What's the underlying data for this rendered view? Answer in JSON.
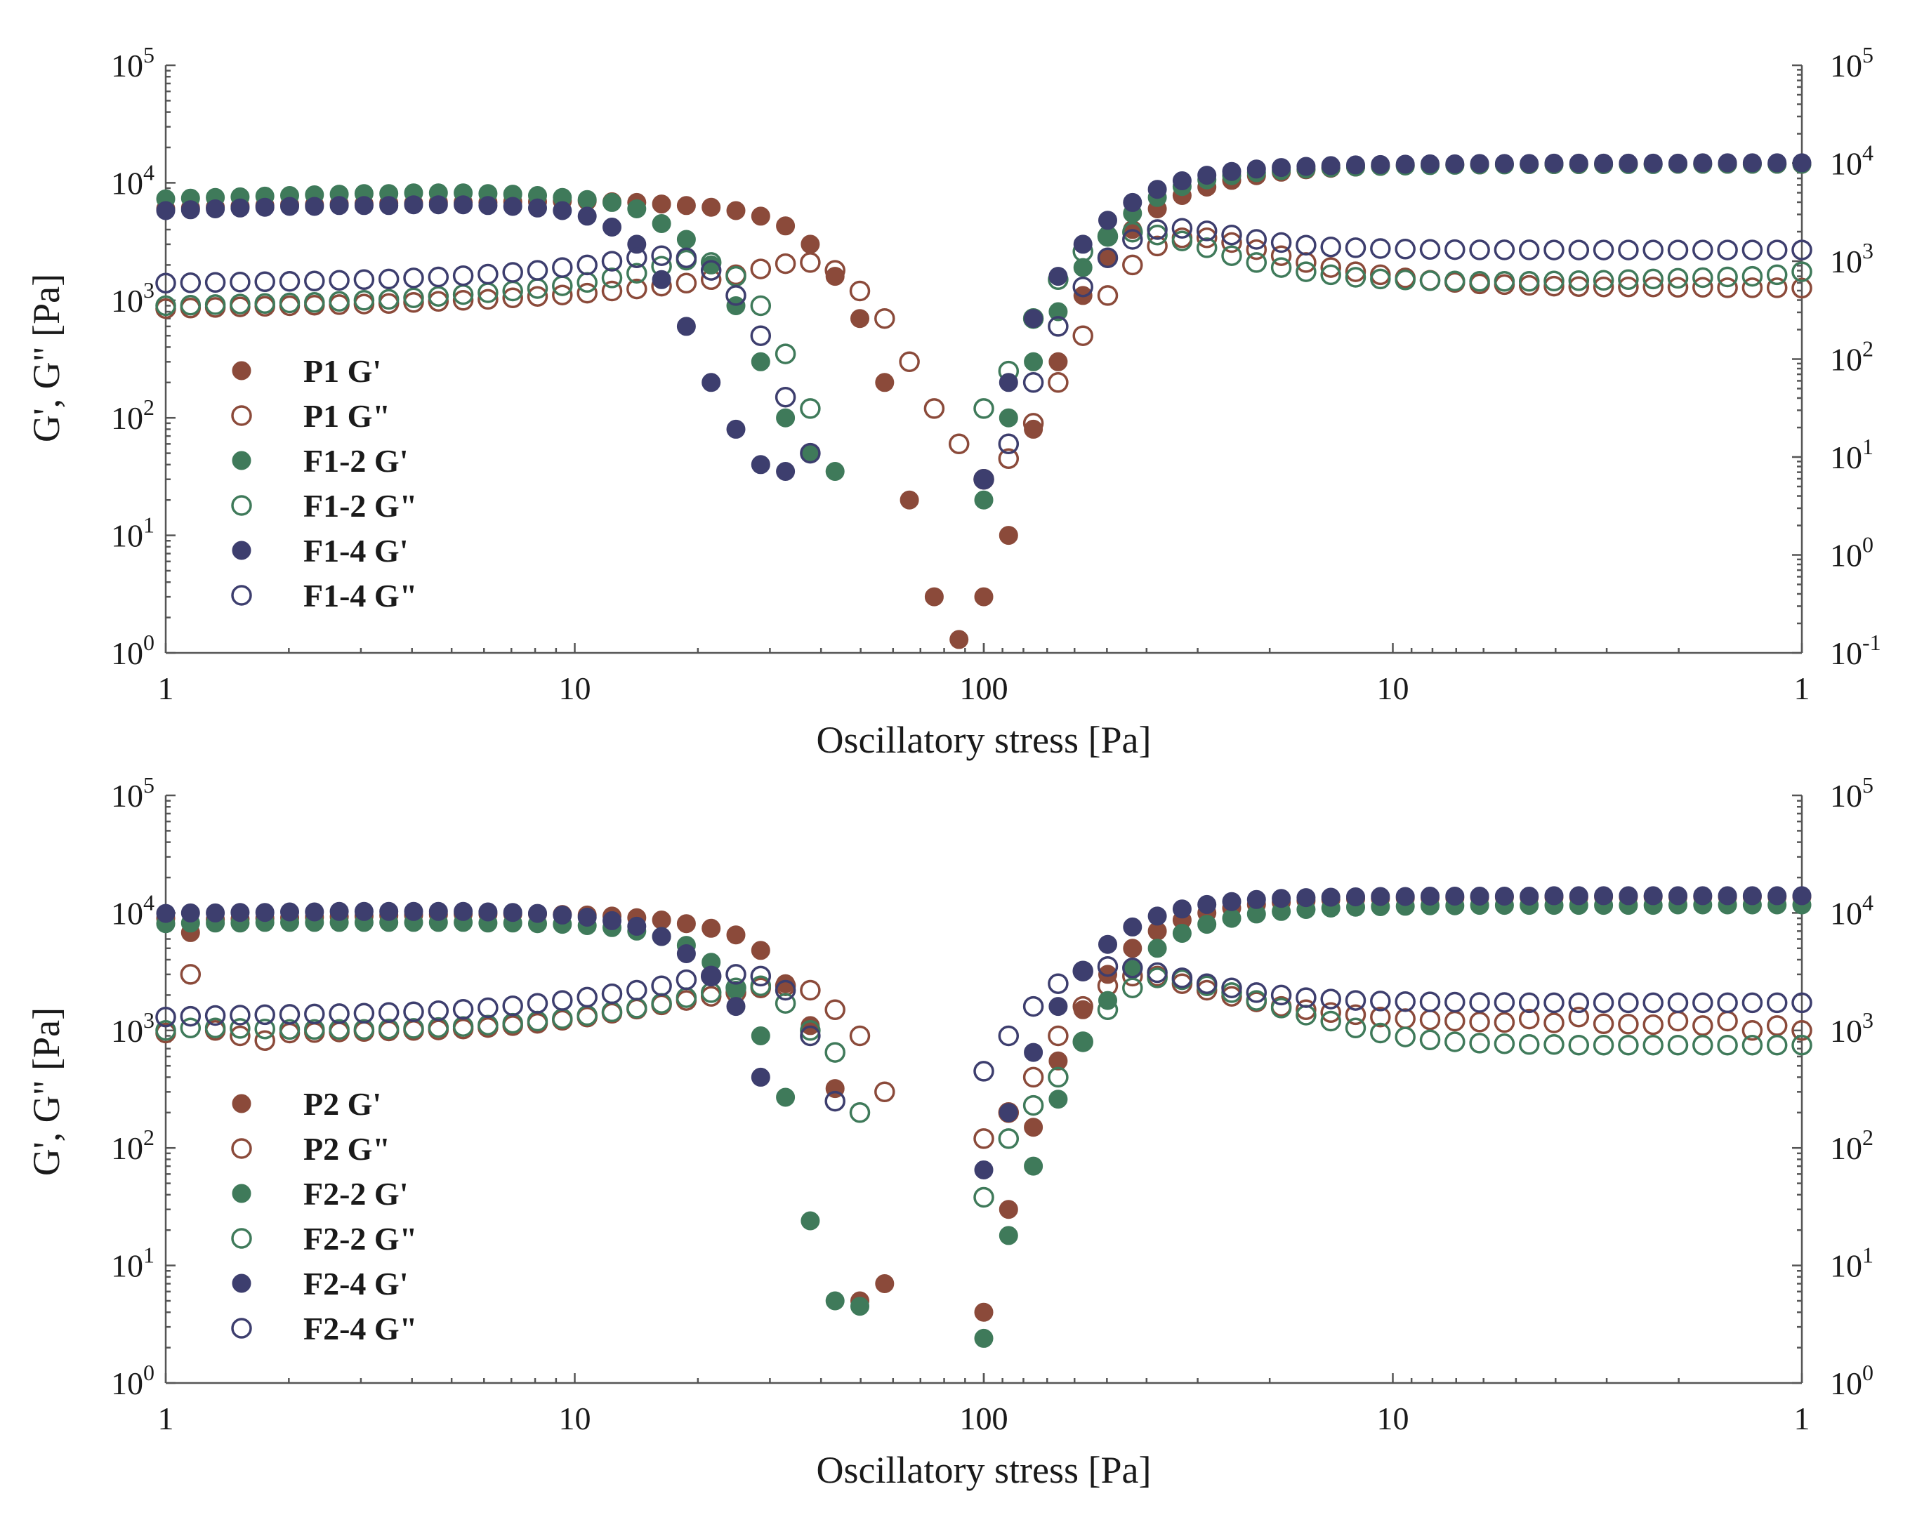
{
  "chart_data": [
    {
      "type": "scatter",
      "panel": "top",
      "xlabel": "Oscillatory stress [Pa]",
      "ylabel": "G', G\" [Pa]",
      "x_axis": "log, ascending 1 to 100 then descending 100 to 1 (up/down stress sweep)",
      "x_tick_labels": [
        "1",
        "10",
        "100",
        "100",
        "10",
        "1"
      ],
      "left_y": {
        "scale": "log",
        "range": [
          1,
          100000
        ],
        "tick_labels": [
          {
            "base": "10",
            "exp": "0"
          },
          {
            "base": "10",
            "exp": "1"
          },
          {
            "base": "10",
            "exp": "2"
          },
          {
            "base": "10",
            "exp": "3"
          },
          {
            "base": "10",
            "exp": "4"
          },
          {
            "base": "10",
            "exp": "5"
          }
        ]
      },
      "right_y": {
        "scale": "log",
        "range": [
          0.1,
          100000
        ],
        "tick_labels": [
          {
            "base": "10",
            "exp": "-1"
          },
          {
            "base": "10",
            "exp": "0"
          },
          {
            "base": "10",
            "exp": "1"
          },
          {
            "base": "10",
            "exp": "2"
          },
          {
            "base": "10",
            "exp": "3"
          },
          {
            "base": "10",
            "exp": "4"
          },
          {
            "base": "10",
            "exp": "5"
          }
        ]
      },
      "legend_position": "lower-left",
      "series": [
        {
          "name": "P1 G'",
          "color": "#8b4a3a",
          "filled": true,
          "up": [
            6000,
            6100,
            6200,
            6300,
            6400,
            6500,
            6500,
            6600,
            6600,
            6700,
            6700,
            6800,
            6800,
            6800,
            6900,
            6900,
            7000,
            7000,
            6900,
            6800,
            6600,
            6400,
            6200,
            5800,
            5200,
            4300,
            3000,
            1600,
            700,
            200,
            20,
            3,
            1.3
          ],
          "down": [
            3,
            10,
            80,
            300,
            1100,
            2300,
            4000,
            6000,
            7800,
            9200,
            10500,
            11500,
            12300,
            12900,
            13300,
            13600,
            13800,
            14000,
            14100,
            14200,
            14200,
            14300,
            14300,
            14300,
            14300,
            14300,
            14400,
            14400,
            14400,
            14400,
            14400,
            14400,
            14400,
            14400
          ]
        },
        {
          "name": "P1 G\"",
          "color": "#8b4a3a",
          "filled": false,
          "up": [
            850,
            860,
            870,
            880,
            890,
            900,
            910,
            920,
            930,
            940,
            960,
            980,
            1000,
            1020,
            1050,
            1080,
            1110,
            1150,
            1200,
            1250,
            1320,
            1400,
            1500,
            1650,
            1850,
            2050,
            2100,
            1800,
            1200,
            700,
            300,
            120,
            60
          ],
          "down": [
            30,
            45,
            90,
            200,
            500,
            1100,
            2000,
            2900,
            3400,
            3400,
            3100,
            2700,
            2400,
            2100,
            1900,
            1750,
            1650,
            1550,
            1480,
            1420,
            1380,
            1360,
            1340,
            1320,
            1310,
            1300,
            1300,
            1300,
            1290,
            1290,
            1280,
            1280,
            1280,
            1270
          ]
        },
        {
          "name": "F1-2 G'",
          "color": "#3f7a5a",
          "filled": true,
          "up": [
            7300,
            7400,
            7500,
            7600,
            7700,
            7800,
            7900,
            8000,
            8100,
            8100,
            8200,
            8200,
            8200,
            8100,
            8000,
            7800,
            7500,
            7200,
            6800,
            6000,
            4500,
            3300,
            2000,
            900,
            300,
            100,
            50,
            35
          ],
          "down": [
            20,
            100,
            300,
            800,
            1900,
            3600,
            5500,
            7500,
            9300,
            10600,
            11500,
            12200,
            12700,
            13100,
            13400,
            13600,
            13800,
            13900,
            14000,
            14100,
            14200,
            14200,
            14300,
            14300,
            14300,
            14300,
            14300,
            14300,
            14400,
            14400,
            14400,
            14400,
            14400,
            14400
          ]
        },
        {
          "name": "F1-2 G\"",
          "color": "#3f7a5a",
          "filled": false,
          "up": [
            900,
            910,
            920,
            930,
            940,
            950,
            960,
            980,
            1000,
            1020,
            1050,
            1080,
            1120,
            1160,
            1200,
            1260,
            1330,
            1420,
            1550,
            1700,
            1950,
            2200,
            2100,
            1600,
            900,
            350,
            120
          ],
          "down": [
            120,
            250,
            700,
            1500,
            2600,
            3500,
            3800,
            3600,
            3200,
            2800,
            2400,
            2100,
            1900,
            1750,
            1650,
            1570,
            1520,
            1490,
            1470,
            1460,
            1450,
            1450,
            1450,
            1460,
            1470,
            1480,
            1500,
            1520,
            1540,
            1560,
            1580,
            1600,
            1650,
            1750
          ]
        },
        {
          "name": "F1-4 G'",
          "color": "#3d3e6e",
          "filled": true,
          "up": [
            5800,
            5900,
            6000,
            6100,
            6200,
            6300,
            6300,
            6400,
            6400,
            6400,
            6500,
            6500,
            6500,
            6400,
            6300,
            6100,
            5800,
            5200,
            4200,
            3000,
            1500,
            600,
            200,
            80,
            40,
            35
          ],
          "down": [
            30,
            200,
            700,
            1600,
            3000,
            4800,
            6800,
            8800,
            10400,
            11600,
            12500,
            13100,
            13500,
            13800,
            14000,
            14200,
            14300,
            14400,
            14500,
            14500,
            14600,
            14600,
            14600,
            14700,
            14700,
            14700,
            14700,
            14700,
            14700,
            14800,
            14800,
            14800,
            14800,
            14800
          ]
        },
        {
          "name": "F1-4 G\"",
          "color": "#3d3e6e",
          "filled": false,
          "up": [
            1400,
            1410,
            1420,
            1430,
            1440,
            1450,
            1460,
            1480,
            1500,
            1520,
            1550,
            1580,
            1620,
            1670,
            1730,
            1800,
            1900,
            2000,
            2150,
            2300,
            2400,
            2300,
            1800,
            1100,
            500,
            150,
            50
          ],
          "down": [
            30,
            60,
            200,
            600,
            1300,
            2300,
            3300,
            4000,
            4100,
            3900,
            3600,
            3300,
            3100,
            2950,
            2850,
            2800,
            2760,
            2730,
            2710,
            2700,
            2690,
            2690,
            2690,
            2680,
            2680,
            2680,
            2680,
            2680,
            2680,
            2680,
            2680,
            2680,
            2680,
            2680
          ]
        }
      ]
    },
    {
      "type": "scatter",
      "panel": "bottom",
      "xlabel": "Oscillatory stress [Pa]",
      "ylabel": "G', G\" [Pa]",
      "x_axis": "log, ascending 1 to 100 then descending 100 to 1 (up/down stress sweep)",
      "x_tick_labels": [
        "1",
        "10",
        "100",
        "100",
        "10",
        "1"
      ],
      "left_y": {
        "scale": "log",
        "range": [
          1,
          100000
        ],
        "tick_labels": [
          {
            "base": "10",
            "exp": "0"
          },
          {
            "base": "10",
            "exp": "1"
          },
          {
            "base": "10",
            "exp": "2"
          },
          {
            "base": "10",
            "exp": "3"
          },
          {
            "base": "10",
            "exp": "4"
          },
          {
            "base": "10",
            "exp": "5"
          }
        ]
      },
      "right_y": {
        "scale": "log",
        "range": [
          1,
          100000
        ],
        "tick_labels": [
          {
            "base": "10",
            "exp": "0"
          },
          {
            "base": "10",
            "exp": "1"
          },
          {
            "base": "10",
            "exp": "2"
          },
          {
            "base": "10",
            "exp": "3"
          },
          {
            "base": "10",
            "exp": "4"
          },
          {
            "base": "10",
            "exp": "5"
          }
        ]
      },
      "legend_position": "lower-left",
      "series": [
        {
          "name": "P2 G'",
          "color": "#8b4a3a",
          "filled": true,
          "up": [
            9000,
            6800,
            8800,
            8900,
            9000,
            9100,
            9200,
            9300,
            9400,
            9500,
            9600,
            9700,
            9800,
            9800,
            9800,
            9800,
            9700,
            9600,
            9400,
            9100,
            8700,
            8100,
            7400,
            6500,
            4800,
            2500,
            1100,
            320,
            5,
            7
          ],
          "down": [
            4,
            30,
            150,
            550,
            1500,
            3000,
            5000,
            7000,
            8700,
            10000,
            11000,
            11800,
            12300,
            12700,
            13000,
            13200,
            13300,
            13400,
            13500,
            13500,
            13600,
            13600,
            13600,
            13600,
            13600,
            13700,
            13700,
            13700,
            13700,
            13700,
            13700,
            13700,
            13700,
            13700
          ]
        },
        {
          "name": "P2 G\"",
          "color": "#8b4a3a",
          "filled": false,
          "up": [
            950,
            3000,
            1000,
            900,
            820,
            950,
            960,
            970,
            980,
            990,
            1000,
            1010,
            1030,
            1060,
            1100,
            1150,
            1220,
            1300,
            1400,
            1520,
            1650,
            1800,
            1950,
            2100,
            2300,
            2400,
            2200,
            1500,
            900,
            300
          ],
          "down": [
            120,
            200,
            400,
            900,
            1600,
            2400,
            2900,
            2900,
            2500,
            2200,
            1950,
            1750,
            1600,
            1500,
            1420,
            1360,
            1300,
            1260,
            1230,
            1200,
            1180,
            1170,
            1250,
            1160,
            1300,
            1140,
            1130,
            1120,
            1200,
            1100,
            1200,
            1000,
            1100,
            1000
          ]
        },
        {
          "name": "F2-2 G'",
          "color": "#3f7a5a",
          "filled": true,
          "up": [
            8100,
            8200,
            8200,
            8200,
            8300,
            8300,
            8300,
            8300,
            8300,
            8300,
            8300,
            8300,
            8300,
            8200,
            8200,
            8100,
            8000,
            7800,
            7500,
            7000,
            6300,
            5300,
            3800,
            2200,
            900,
            270,
            24,
            5,
            4.5
          ],
          "down": [
            2.4,
            18,
            70,
            260,
            800,
            1800,
            3300,
            5000,
            6700,
            8000,
            9000,
            9800,
            10300,
            10700,
            11000,
            11200,
            11300,
            11400,
            11500,
            11500,
            11600,
            11600,
            11600,
            11600,
            11600,
            11600,
            11600,
            11600,
            11700,
            11700,
            11700,
            11700,
            11700,
            11700
          ]
        },
        {
          "name": "F2-2 G\"",
          "color": "#3f7a5a",
          "filled": false,
          "up": [
            1000,
            1050,
            1050,
            1040,
            1030,
            1020,
            1020,
            1020,
            1020,
            1030,
            1040,
            1060,
            1080,
            1110,
            1150,
            1200,
            1260,
            1340,
            1440,
            1550,
            1700,
            1900,
            2100,
            2300,
            2400,
            1700,
            1000,
            650,
            200
          ],
          "down": [
            38,
            120,
            230,
            400,
            800,
            1500,
            2300,
            2800,
            2700,
            2400,
            2100,
            1800,
            1550,
            1350,
            1200,
            1050,
            950,
            880,
            830,
            800,
            780,
            770,
            760,
            760,
            750,
            750,
            750,
            750,
            750,
            750,
            750,
            750,
            750,
            750
          ]
        },
        {
          "name": "F2-4 G'",
          "color": "#3d3e6e",
          "filled": true,
          "up": [
            9900,
            10000,
            10000,
            10100,
            10100,
            10200,
            10200,
            10300,
            10300,
            10300,
            10300,
            10300,
            10300,
            10200,
            10100,
            9900,
            9600,
            9200,
            8600,
            7700,
            6300,
            4500,
            2900,
            1600,
            400
          ],
          "down": [
            65,
            200,
            650,
            1600,
            3200,
            5400,
            7600,
            9400,
            10800,
            11800,
            12500,
            13000,
            13300,
            13500,
            13600,
            13700,
            13800,
            13800,
            13900,
            13900,
            13900,
            13900,
            13900,
            14000,
            14000,
            14000,
            14000,
            14000,
            14000,
            14000,
            14000,
            14000,
            14000,
            14000
          ]
        },
        {
          "name": "F2-4 G\"",
          "color": "#3d3e6e",
          "filled": false,
          "up": [
            1300,
            1320,
            1340,
            1350,
            1360,
            1370,
            1380,
            1390,
            1400,
            1420,
            1440,
            1470,
            1510,
            1560,
            1620,
            1700,
            1800,
            1920,
            2050,
            2200,
            2400,
            2700,
            2900,
            3000,
            2900,
            2200,
            900,
            250
          ],
          "down": [
            450,
            900,
            1600,
            2500,
            3200,
            3500,
            3400,
            3100,
            2800,
            2500,
            2300,
            2100,
            2000,
            1900,
            1850,
            1800,
            1780,
            1760,
            1750,
            1740,
            1730,
            1730,
            1720,
            1720,
            1720,
            1720,
            1720,
            1720,
            1720,
            1720,
            1720,
            1720,
            1720,
            1720
          ]
        }
      ]
    }
  ]
}
